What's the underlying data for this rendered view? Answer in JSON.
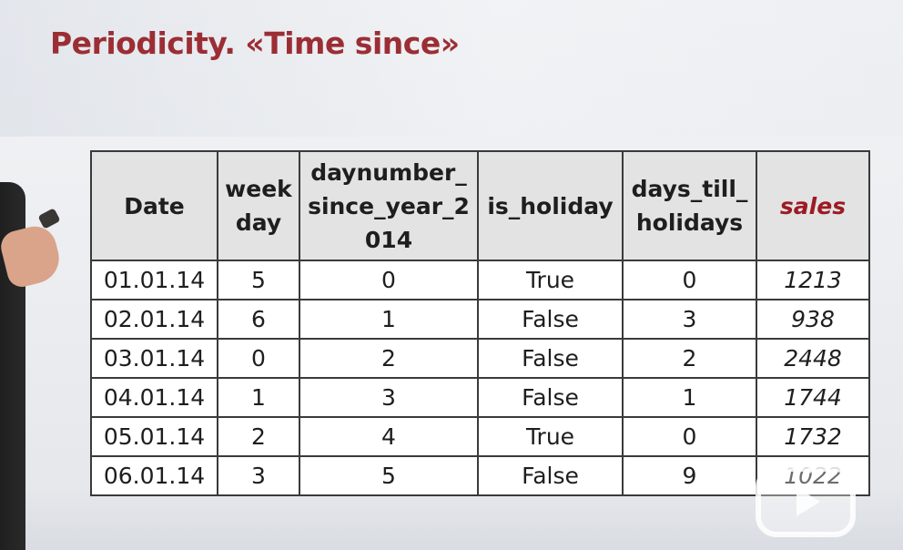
{
  "slide": {
    "title": "Periodicity. «Time since»"
  },
  "table": {
    "headers": {
      "date": "Date",
      "weekday": "week day",
      "daynumber": "daynumber_ since_year_2 014",
      "is_holiday": "is_holiday",
      "days_till_holidays": "days_till_ holidays",
      "sales": "sales"
    },
    "rows": [
      {
        "date": "01.01.14",
        "weekday": "5",
        "daynumber": "0",
        "is_holiday": "True",
        "days_till_holidays": "0",
        "sales": "1213"
      },
      {
        "date": "02.01.14",
        "weekday": "6",
        "daynumber": "1",
        "is_holiday": "False",
        "days_till_holidays": "3",
        "sales": "938"
      },
      {
        "date": "03.01.14",
        "weekday": "0",
        "daynumber": "2",
        "is_holiday": "False",
        "days_till_holidays": "2",
        "sales": "2448"
      },
      {
        "date": "04.01.14",
        "weekday": "1",
        "daynumber": "3",
        "is_holiday": "False",
        "days_till_holidays": "1",
        "sales": "1744"
      },
      {
        "date": "05.01.14",
        "weekday": "2",
        "daynumber": "4",
        "is_holiday": "True",
        "days_till_holidays": "0",
        "sales": "1732"
      },
      {
        "date": "06.01.14",
        "weekday": "3",
        "daynumber": "5",
        "is_holiday": "False",
        "days_till_holidays": "9",
        "sales": "1022"
      }
    ]
  },
  "colors": {
    "title": "#9b2e34",
    "sales_header": "#9b1b24",
    "header_bg": "#e3e3e3",
    "border": "#3a3a3a"
  },
  "overlay": {
    "watermark_icon": "video-play-logo-icon"
  }
}
